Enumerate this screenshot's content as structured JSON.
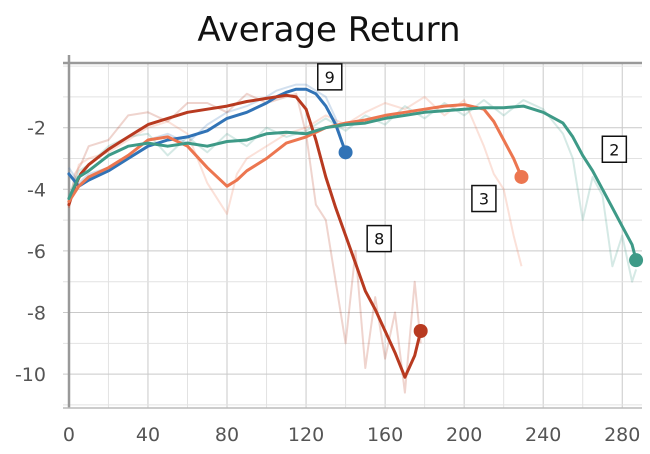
{
  "chart_data": {
    "type": "line",
    "title": "Average Return",
    "xlabel": "",
    "ylabel": "",
    "xlim": [
      -3,
      290
    ],
    "ylim": [
      -11.1,
      0.1
    ],
    "x_ticks": [
      0,
      40,
      80,
      120,
      160,
      200,
      240,
      280
    ],
    "y_ticks": [
      -2,
      -4,
      -6,
      -8,
      -10
    ],
    "grid": true,
    "legend": "inline-labels",
    "series": [
      {
        "name": "9",
        "color": "#3173b6",
        "x": [
          0,
          5,
          10,
          20,
          30,
          40,
          50,
          60,
          70,
          80,
          90,
          100,
          105,
          110,
          115,
          120,
          125,
          130,
          135,
          140
        ],
        "y": [
          -3.5,
          -3.9,
          -3.7,
          -3.4,
          -3.0,
          -2.6,
          -2.4,
          -2.3,
          -2.1,
          -1.7,
          -1.5,
          -1.2,
          -1.0,
          -0.85,
          -0.75,
          -0.75,
          -0.9,
          -1.3,
          -1.9,
          -2.8
        ],
        "raw_y": [
          -3.3,
          -3.8,
          -3.5,
          -3.3,
          -2.9,
          -2.4,
          -2.2,
          -2.5,
          -1.9,
          -1.5,
          -1.3,
          -1.0,
          -0.8,
          -0.7,
          -0.6,
          -0.6,
          -0.8,
          -1.0,
          -1.7,
          -2.9
        ]
      },
      {
        "name": "8",
        "color": "#b83a20",
        "x": [
          0,
          3,
          6,
          10,
          20,
          30,
          40,
          50,
          60,
          70,
          80,
          90,
          100,
          110,
          115,
          120,
          125,
          130,
          135,
          140,
          145,
          150,
          155,
          160,
          165,
          170,
          175,
          178
        ],
        "y": [
          -4.5,
          -3.9,
          -3.5,
          -3.2,
          -2.7,
          -2.3,
          -1.9,
          -1.7,
          -1.5,
          -1.4,
          -1.3,
          -1.15,
          -1.05,
          -0.95,
          -1.0,
          -1.4,
          -2.4,
          -3.6,
          -4.6,
          -5.5,
          -6.4,
          -7.3,
          -7.9,
          -8.6,
          -9.3,
          -10.1,
          -9.4,
          -8.6
        ],
        "raw_y": [
          -4.6,
          -3.5,
          -3.2,
          -2.6,
          -2.4,
          -1.6,
          -1.5,
          -1.8,
          -1.2,
          -1.2,
          -1.5,
          -0.9,
          -1.2,
          -1.0,
          -0.9,
          -2.2,
          -4.5,
          -5.0,
          -7.0,
          -9.0,
          -6.0,
          -9.8,
          -7.5,
          -9.5,
          -8.0,
          -10.6,
          -7.0,
          -9.0
        ]
      },
      {
        "name": "3",
        "color": "#ec7650",
        "x": [
          0,
          5,
          10,
          20,
          30,
          40,
          50,
          60,
          70,
          80,
          85,
          90,
          100,
          110,
          120,
          130,
          140,
          150,
          160,
          170,
          180,
          190,
          200,
          210,
          215,
          220,
          225,
          229
        ],
        "y": [
          -4.4,
          -3.9,
          -3.6,
          -3.3,
          -2.9,
          -2.4,
          -2.3,
          -2.6,
          -3.3,
          -3.9,
          -3.7,
          -3.4,
          -3.0,
          -2.5,
          -2.3,
          -2.0,
          -1.85,
          -1.75,
          -1.6,
          -1.5,
          -1.4,
          -1.3,
          -1.25,
          -1.4,
          -1.8,
          -2.4,
          -3.0,
          -3.6
        ],
        "raw_y": [
          -4.6,
          -3.2,
          -3.0,
          -2.8,
          -2.4,
          -2.0,
          -1.8,
          -2.2,
          -3.8,
          -4.8,
          -3.5,
          -3.0,
          -2.6,
          -2.2,
          -2.0,
          -1.6,
          -1.9,
          -1.5,
          -1.2,
          -1.4,
          -1.0,
          -1.6,
          -1.1,
          -2.6,
          -3.5,
          -4.0,
          -5.5,
          -6.5
        ]
      },
      {
        "name": "2",
        "color": "#3e9a87",
        "x": [
          0,
          5,
          10,
          20,
          30,
          40,
          50,
          60,
          70,
          80,
          90,
          100,
          110,
          120,
          130,
          140,
          150,
          160,
          170,
          180,
          190,
          200,
          210,
          220,
          230,
          240,
          250,
          255,
          260,
          265,
          270,
          275,
          280,
          285,
          287
        ],
        "y": [
          -4.3,
          -3.6,
          -3.4,
          -2.9,
          -2.6,
          -2.5,
          -2.6,
          -2.5,
          -2.6,
          -2.45,
          -2.4,
          -2.2,
          -2.15,
          -2.2,
          -2.0,
          -1.9,
          -1.85,
          -1.7,
          -1.6,
          -1.5,
          -1.45,
          -1.4,
          -1.35,
          -1.35,
          -1.3,
          -1.5,
          -1.85,
          -2.3,
          -2.9,
          -3.4,
          -4.0,
          -4.6,
          -5.2,
          -5.8,
          -6.3
        ],
        "raw_y": [
          -4.2,
          -3.4,
          -3.2,
          -2.6,
          -2.3,
          -2.2,
          -2.9,
          -2.3,
          -2.8,
          -2.2,
          -2.6,
          -2.0,
          -2.3,
          -2.1,
          -1.7,
          -2.1,
          -1.6,
          -1.9,
          -1.3,
          -1.7,
          -1.2,
          -1.6,
          -1.1,
          -1.6,
          -1.1,
          -1.4,
          -2.2,
          -3.0,
          -5.0,
          -3.6,
          -4.2,
          -6.5,
          -5.5,
          -7.0,
          -6.6
        ]
      }
    ]
  }
}
